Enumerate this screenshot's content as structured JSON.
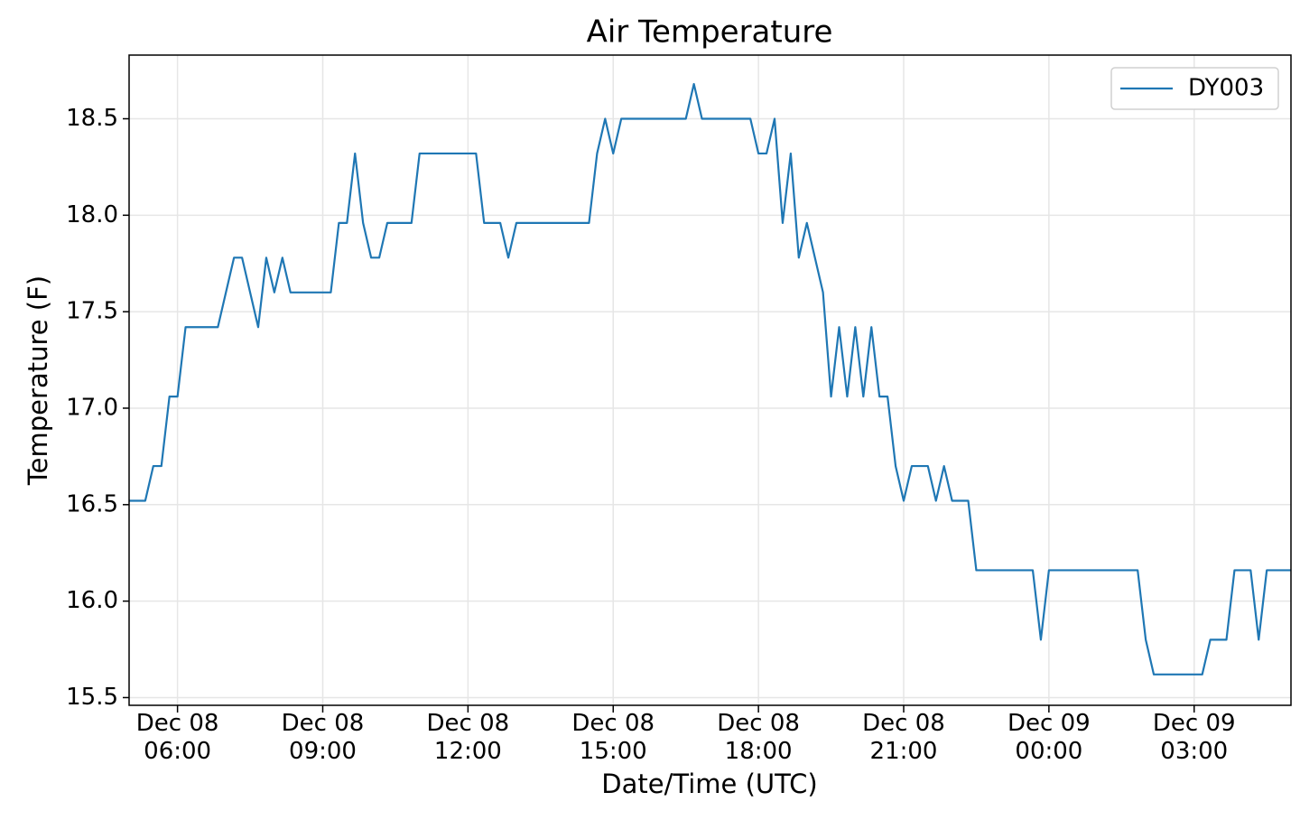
{
  "chart_data": {
    "type": "line",
    "title": "Air Temperature",
    "x_label": "Date/Time (UTC)",
    "y_label": "Temperature (F)",
    "x": [
      "Dec 08 05:00",
      "Dec 08 05:20",
      "Dec 08 05:30",
      "Dec 08 05:40",
      "Dec 08 05:50",
      "Dec 08 06:00",
      "Dec 08 06:10",
      "Dec 08 06:50",
      "Dec 08 07:10",
      "Dec 08 07:20",
      "Dec 08 07:40",
      "Dec 08 07:50",
      "Dec 08 08:00",
      "Dec 08 08:10",
      "Dec 08 08:20",
      "Dec 08 09:10",
      "Dec 08 09:20",
      "Dec 08 09:30",
      "Dec 08 09:40",
      "Dec 08 09:50",
      "Dec 08 10:00",
      "Dec 08 10:10",
      "Dec 08 10:20",
      "Dec 08 10:50",
      "Dec 08 11:00",
      "Dec 08 12:10",
      "Dec 08 12:20",
      "Dec 08 12:40",
      "Dec 08 12:50",
      "Dec 08 13:00",
      "Dec 08 14:30",
      "Dec 08 14:40",
      "Dec 08 14:50",
      "Dec 08 15:00",
      "Dec 08 15:10",
      "Dec 08 16:30",
      "Dec 08 16:40",
      "Dec 08 16:50",
      "Dec 08 17:50",
      "Dec 08 18:00",
      "Dec 08 18:10",
      "Dec 08 18:20",
      "Dec 08 18:30",
      "Dec 08 18:40",
      "Dec 08 18:50",
      "Dec 08 19:00",
      "Dec 08 19:20",
      "Dec 08 19:30",
      "Dec 08 19:40",
      "Dec 08 19:50",
      "Dec 08 20:00",
      "Dec 08 20:10",
      "Dec 08 20:20",
      "Dec 08 20:30",
      "Dec 08 20:40",
      "Dec 08 20:50",
      "Dec 08 21:00",
      "Dec 08 21:10",
      "Dec 08 21:30",
      "Dec 08 21:40",
      "Dec 08 21:50",
      "Dec 08 22:00",
      "Dec 08 22:20",
      "Dec 08 22:30",
      "Dec 08 23:40",
      "Dec 08 23:50",
      "Dec 09 00:00",
      "Dec 09 01:50",
      "Dec 09 02:00",
      "Dec 09 02:10",
      "Dec 09 03:10",
      "Dec 09 03:20",
      "Dec 09 03:40",
      "Dec 09 03:50",
      "Dec 09 04:10",
      "Dec 09 04:20",
      "Dec 09 04:30",
      "Dec 09 05:00"
    ],
    "series": [
      {
        "name": "DY003",
        "color": "#1f77b4",
        "values": [
          16.52,
          16.52,
          16.7,
          16.7,
          17.06,
          17.06,
          17.42,
          17.42,
          17.78,
          17.78,
          17.42,
          17.78,
          17.6,
          17.78,
          17.6,
          17.6,
          17.96,
          17.96,
          18.32,
          17.96,
          17.78,
          17.78,
          17.96,
          17.96,
          18.32,
          18.32,
          17.96,
          17.96,
          17.78,
          17.96,
          17.96,
          18.32,
          18.5,
          18.32,
          18.5,
          18.5,
          18.68,
          18.5,
          18.5,
          18.32,
          18.32,
          18.5,
          17.96,
          18.32,
          17.78,
          17.96,
          17.6,
          17.06,
          17.42,
          17.06,
          17.42,
          17.06,
          17.42,
          17.06,
          17.06,
          16.7,
          16.52,
          16.7,
          16.7,
          16.52,
          16.7,
          16.52,
          16.52,
          16.16,
          16.16,
          15.8,
          16.16,
          16.16,
          15.8,
          15.62,
          15.62,
          15.8,
          15.8,
          16.16,
          16.16,
          15.8,
          16.16,
          16.16
        ]
      }
    ],
    "xlim": [
      "Dec 08 05:00",
      "Dec 09 05:00"
    ],
    "xticks": [
      {
        "value": "Dec 08 06:00",
        "label": "Dec 08\n06:00"
      },
      {
        "value": "Dec 08 09:00",
        "label": "Dec 08\n09:00"
      },
      {
        "value": "Dec 08 12:00",
        "label": "Dec 08\n12:00"
      },
      {
        "value": "Dec 08 15:00",
        "label": "Dec 08\n15:00"
      },
      {
        "value": "Dec 08 18:00",
        "label": "Dec 08\n18:00"
      },
      {
        "value": "Dec 08 21:00",
        "label": "Dec 08\n21:00"
      },
      {
        "value": "Dec 09 00:00",
        "label": "Dec 09\n00:00"
      },
      {
        "value": "Dec 09 03:00",
        "label": "Dec 09\n03:00"
      }
    ],
    "ylim": [
      15.46,
      18.83
    ],
    "yticks": [
      15.5,
      {
        "value": 16,
        "label": "16.0"
      },
      16.5,
      {
        "value": 17,
        "label": "17.0"
      },
      17.5,
      {
        "value": 18,
        "label": "18.0"
      },
      18.5
    ],
    "grid": true,
    "legend": "upper right"
  }
}
